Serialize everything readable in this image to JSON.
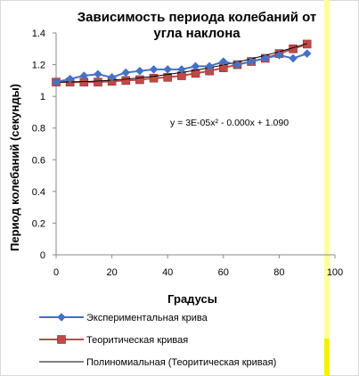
{
  "chart_data": {
    "type": "line",
    "title": "Зависимость периода колебаний от угла наклона",
    "title_lines": [
      "Зависимость периода колебаний от",
      "угла наклона"
    ],
    "xlabel": "Градусы",
    "ylabel": "Период колебаний (секунды)",
    "xlim": [
      0,
      100
    ],
    "ylim": [
      0,
      1.4
    ],
    "x_ticks": [
      0,
      20,
      40,
      60,
      80,
      100
    ],
    "y_ticks": [
      0,
      0.2,
      0.4,
      0.6,
      0.8,
      1,
      1.2,
      1.4
    ],
    "x_tick_labels": [
      "0",
      "20",
      "40",
      "60",
      "80",
      "100"
    ],
    "y_tick_labels": [
      "0",
      "0.2",
      "0.4",
      "0.6",
      "0.8",
      "1",
      "1.2",
      "1.4"
    ],
    "grid": false,
    "legend_position": "bottom",
    "annotation": "y = 3E-05x² - 0.000x + 1.090",
    "series": [
      {
        "name": "Экспериментальная крива",
        "color": "#4472c4",
        "marker": "diamond",
        "x": [
          0,
          5,
          10,
          15,
          20,
          25,
          30,
          35,
          40,
          45,
          50,
          55,
          60,
          65,
          70,
          75,
          80,
          85,
          90
        ],
        "y": [
          1.09,
          1.11,
          1.13,
          1.14,
          1.12,
          1.15,
          1.16,
          1.17,
          1.17,
          1.17,
          1.19,
          1.19,
          1.22,
          1.2,
          1.22,
          1.24,
          1.26,
          1.24,
          1.27
        ]
      },
      {
        "name": "Теоритическая кривая",
        "color": "#be4b48",
        "marker": "square",
        "x": [
          0,
          5,
          10,
          15,
          20,
          25,
          30,
          35,
          40,
          45,
          50,
          55,
          60,
          65,
          70,
          75,
          80,
          85,
          90
        ],
        "y": [
          1.09,
          1.09,
          1.09,
          1.09,
          1.095,
          1.1,
          1.105,
          1.115,
          1.12,
          1.13,
          1.145,
          1.16,
          1.18,
          1.2,
          1.22,
          1.24,
          1.27,
          1.3,
          1.33
        ]
      },
      {
        "name": "Полиномиальная (Теоритическая кривая)",
        "color": "#000000",
        "marker": "none",
        "trend": {
          "a": 3e-05,
          "b": 0,
          "c": 1.09
        }
      }
    ]
  }
}
